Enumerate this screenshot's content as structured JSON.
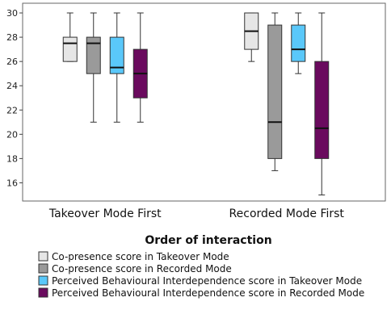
{
  "chart_data": {
    "type": "box",
    "categories": [
      "Takeover Mode First",
      "Recorded Mode First"
    ],
    "xlabel": "Order of interaction",
    "ylim": [
      14.5,
      30.8
    ],
    "yticks": [
      16,
      18,
      20,
      22,
      24,
      26,
      28,
      30
    ],
    "legend_position": "bottom-left",
    "series": [
      {
        "name": "Co-presence score in Takeover Mode",
        "color": "#e6e6e6",
        "boxes": [
          {
            "min": 26,
            "q1": 26,
            "median": 27.5,
            "q3": 28,
            "max": 30
          },
          {
            "min": 26,
            "q1": 27,
            "median": 28.5,
            "q3": 30,
            "max": 30
          }
        ]
      },
      {
        "name": "Co-presence score in Recorded Mode",
        "color": "#9a9a9a",
        "boxes": [
          {
            "min": 21,
            "q1": 25,
            "median": 27.5,
            "q3": 28,
            "max": 30
          },
          {
            "min": 17,
            "q1": 18,
            "median": 21,
            "q3": 29,
            "max": 30
          }
        ]
      },
      {
        "name": "Perceived Behavioural Interdependence score in Takeover Mode",
        "color": "#5ac8fa",
        "boxes": [
          {
            "min": 21,
            "q1": 25,
            "median": 25.5,
            "q3": 28,
            "max": 30
          },
          {
            "min": 25,
            "q1": 26,
            "median": 27,
            "q3": 29,
            "max": 30
          }
        ]
      },
      {
        "name": "Perceived Behavioural Interdependence score in Recorded Mode",
        "color": "#6a0a5e",
        "boxes": [
          {
            "min": 21,
            "q1": 23,
            "median": 25,
            "q3": 27,
            "max": 30
          },
          {
            "min": 15,
            "q1": 18,
            "median": 20.5,
            "q3": 26,
            "max": 30
          }
        ]
      }
    ]
  }
}
